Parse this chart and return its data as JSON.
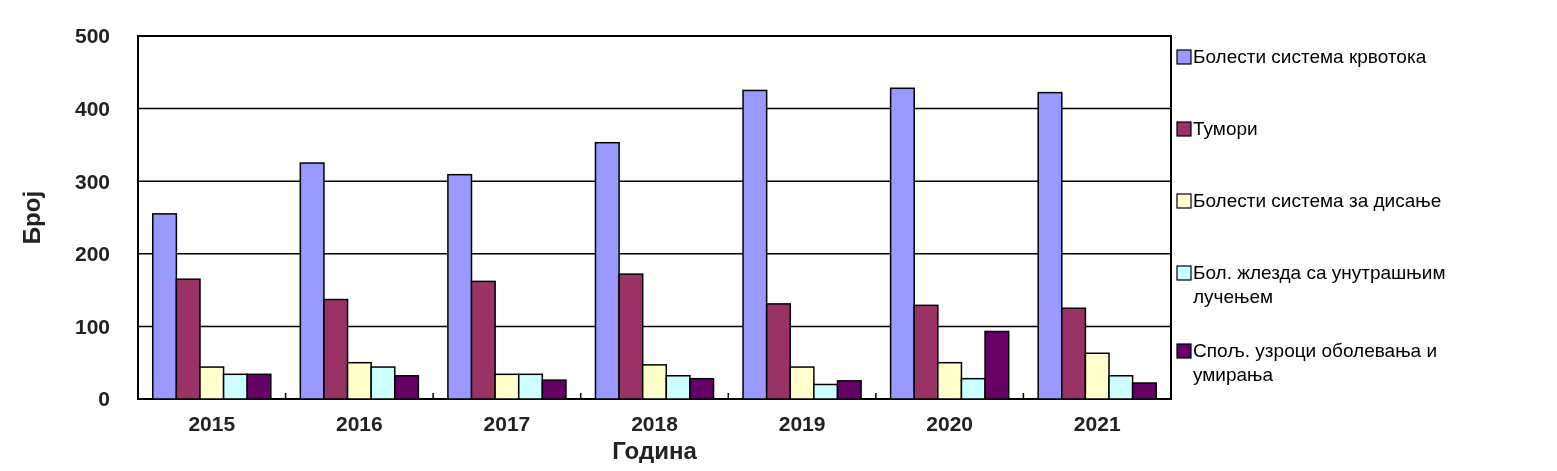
{
  "chart_data": {
    "type": "bar",
    "xlabel": "Година",
    "ylabel": "Број",
    "categories": [
      "2015",
      "2016",
      "2017",
      "2018",
      "2019",
      "2020",
      "2021"
    ],
    "ylim": [
      0,
      500
    ],
    "yticks": [
      0,
      100,
      200,
      300,
      400,
      500
    ],
    "grid": "y",
    "legend": "right",
    "series": [
      {
        "name": "Болести система крвотока",
        "color": "#9999ff",
        "values": [
          255,
          325,
          309,
          353,
          425,
          428,
          422
        ]
      },
      {
        "name": "Тумори",
        "color": "#993366",
        "values": [
          165,
          137,
          162,
          172,
          131,
          129,
          125
        ]
      },
      {
        "name": "Болести система за дисање",
        "color": "#ffffcc",
        "values": [
          44,
          50,
          34,
          47,
          44,
          50,
          63
        ]
      },
      {
        "name": "Бол. жлезда са унутрашњим лучењем",
        "color": "#ccffff",
        "values": [
          34,
          44,
          34,
          32,
          20,
          28,
          32
        ]
      },
      {
        "name": "Спољ. узроци оболевања и умирања",
        "color": "#660066",
        "values": [
          34,
          32,
          26,
          28,
          25,
          93,
          22
        ]
      }
    ]
  }
}
